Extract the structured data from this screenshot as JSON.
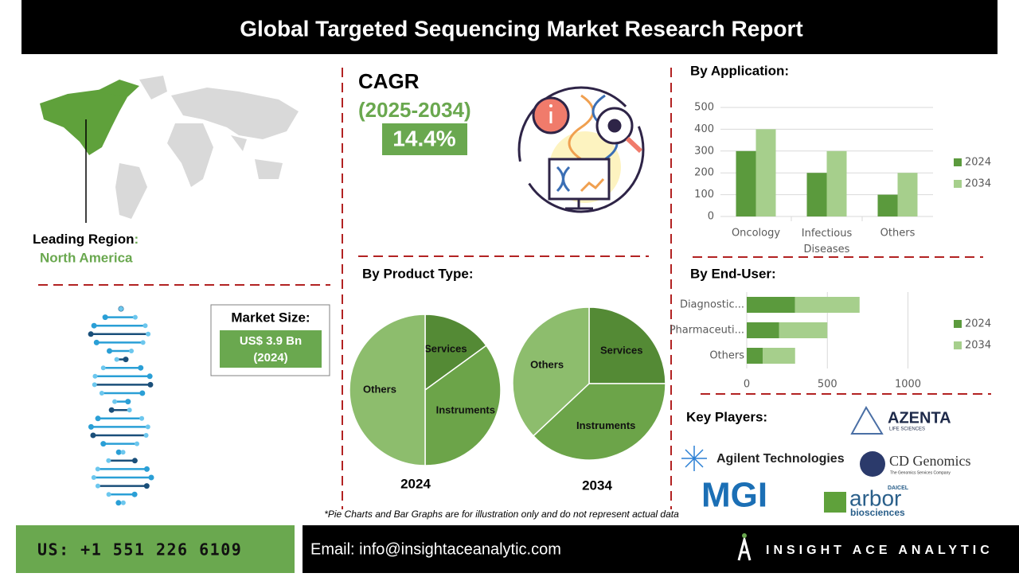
{
  "header": {
    "title": "Global Targeted Sequencing Market Research Report"
  },
  "region": {
    "label": "Leading Region",
    "colon": ":",
    "value": "North America"
  },
  "cagr": {
    "label": "CAGR",
    "period": "(2025-2034)",
    "value": "14.4%"
  },
  "market_size": {
    "label": "Market Size:",
    "value": "US$ 3.9 Bn",
    "year": "(2024)"
  },
  "chart_data": [
    {
      "type": "bar",
      "title": "By Application:",
      "categories": [
        "Oncology",
        "Infectious Diseases",
        "Others"
      ],
      "series": [
        {
          "name": "2024",
          "color": "#5b9a3d",
          "values": [
            300,
            200,
            100
          ]
        },
        {
          "name": "2034",
          "color": "#a6cf8c",
          "values": [
            400,
            300,
            200
          ]
        }
      ],
      "ylim": [
        0,
        500
      ],
      "yticks": [
        0,
        100,
        200,
        300,
        400,
        500
      ],
      "grid": true,
      "legend": "right"
    },
    {
      "type": "pie",
      "title": "By Product Type:",
      "categories": [
        "Services",
        "Instruments",
        "Others"
      ],
      "colors": [
        "#548a35",
        "#6ca449",
        "#8dbd6d"
      ],
      "series": [
        {
          "name": "2024",
          "values": [
            15,
            35,
            50
          ]
        },
        {
          "name": "2034",
          "values": [
            25,
            38,
            37
          ]
        }
      ]
    },
    {
      "type": "hbar",
      "title": "By End-User:",
      "stacked": true,
      "categories": [
        "Diagnostic...",
        "Pharmaceuti...",
        "Others"
      ],
      "series": [
        {
          "name": "2024",
          "color": "#5b9a3d",
          "values": [
            300,
            200,
            100
          ]
        },
        {
          "name": "2034",
          "color": "#a6cf8c",
          "values": [
            400,
            300,
            200
          ]
        }
      ],
      "xlim": [
        0,
        1200
      ],
      "xticks": [
        0,
        500,
        1000
      ],
      "grid": true,
      "legend": "right"
    }
  ],
  "key_players": {
    "title": "Key Players:",
    "azenta": {
      "name": "AZENTA",
      "tagline": "LIFE SCIENCES"
    },
    "agilent": "Agilent Technologies",
    "cd_genomics": {
      "name": "CD Genomics",
      "tagline": "The Genomics Services Company"
    },
    "mgi": "MGI",
    "arbor": {
      "name": "arbor",
      "sub": "biosciences",
      "parent": "DAICEL"
    }
  },
  "footnote": "*Pie Charts and Bar Graphs are for illustration only and do not represent actual data",
  "footer": {
    "phone": "US: +1 551 226 6109",
    "email": "Email: info@insightaceanalytic.com",
    "brand": "INSIGHT ACE ANALYTIC"
  }
}
